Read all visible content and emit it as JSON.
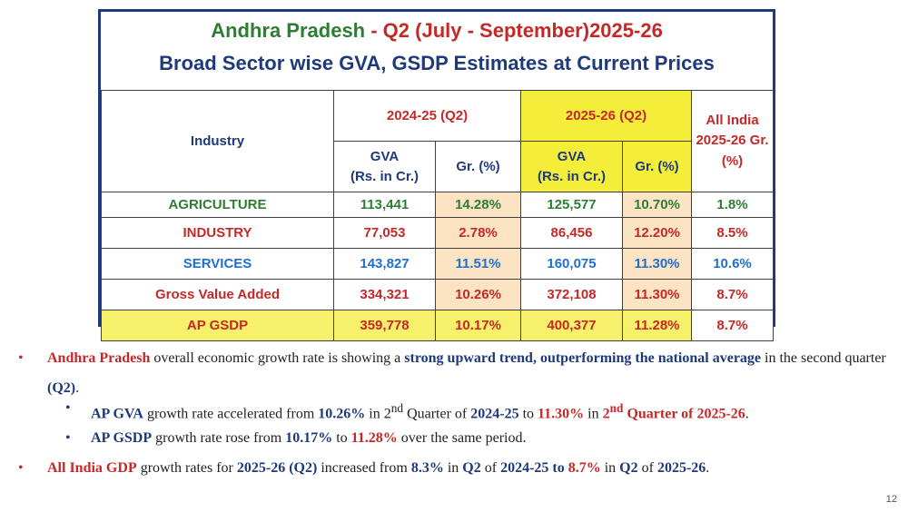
{
  "title": {
    "part1": "Andhra Pradesh",
    "part2": " - Q2 (July - September)2025-26",
    "line2": "Broad Sector wise GVA, GSDP Estimates at Current Prices"
  },
  "table": {
    "header": {
      "industry": "Industry",
      "year1": "2024-25 (Q2)",
      "year2": "2025-26 (Q2)",
      "all_india": "All India 2025-26 Gr. (%)",
      "gva": "GVA",
      "gva_unit": "(Rs. in Cr.)",
      "growth": "Gr. (%)"
    },
    "rows": [
      {
        "label": "AGRICULTURE",
        "gva1": "113,441",
        "gr1": "14.28%",
        "gva2": "125,577",
        "gr2": "10.70%",
        "ai": "1.8%"
      },
      {
        "label": "INDUSTRY",
        "gva1": "77,053",
        "gr1": "2.78%",
        "gva2": "86,456",
        "gr2": "12.20%",
        "ai": "8.5%"
      },
      {
        "label": "SERVICES",
        "gva1": "143,827",
        "gr1": "11.51%",
        "gva2": "160,075",
        "gr2": "11.30%",
        "ai": "10.6%"
      },
      {
        "label": "Gross Value Added",
        "gva1": "334,321",
        "gr1": "10.26%",
        "gva2": "372,108",
        "gr2": "11.30%",
        "ai": "8.7%"
      },
      {
        "label": "AP GSDP",
        "gva1": "359,778",
        "gr1": "10.17%",
        "gva2": "400,377",
        "gr2": "11.28%",
        "ai": "8.7%"
      }
    ]
  },
  "bullets": {
    "b1": {
      "a": "Andhra Pradesh",
      "b": " overall economic growth rate is showing a ",
      "c": "strong upward trend, outperforming the national average",
      "d": " in the second quarter ",
      "e": "(Q2)",
      "f": "."
    },
    "b2": {
      "a": "AP GVA",
      "b": " growth rate accelerated from ",
      "c": "10.26%",
      "d": " in 2",
      "sup1": "nd",
      "e": " Quarter of ",
      "f": "2024-25",
      "g": " to ",
      "h": "11.30%",
      "i": " in ",
      "j": "2",
      "sup2": "nd",
      "k": " Quarter of ",
      "l": "2025-26",
      "m": "."
    },
    "b3": {
      "a": "AP GSDP",
      "b": " growth rate rose from ",
      "c": "10.17%",
      "d": " to ",
      "e": "11.28%",
      "f": " over the same period."
    },
    "b4": {
      "a": "All India GDP",
      "b": " growth rates for ",
      "c": "2025-26 (Q2)",
      "d": " increased from ",
      "e": "8.3%",
      "f": " in ",
      "g": "Q2",
      "h": " of ",
      "i": "2024-25 to",
      "j": " ",
      "k": "8.7%",
      "l": " in ",
      "m": "Q2",
      "n": " of ",
      "o": "2025-26",
      "p": "."
    }
  },
  "page_number": "12",
  "colors": {
    "navy": "#1f3a7a",
    "red": "#c62828",
    "green": "#2e7d32",
    "blue": "#1e6fd0",
    "yellow": "#f4ee3a",
    "peach": "#fbe3c4"
  }
}
